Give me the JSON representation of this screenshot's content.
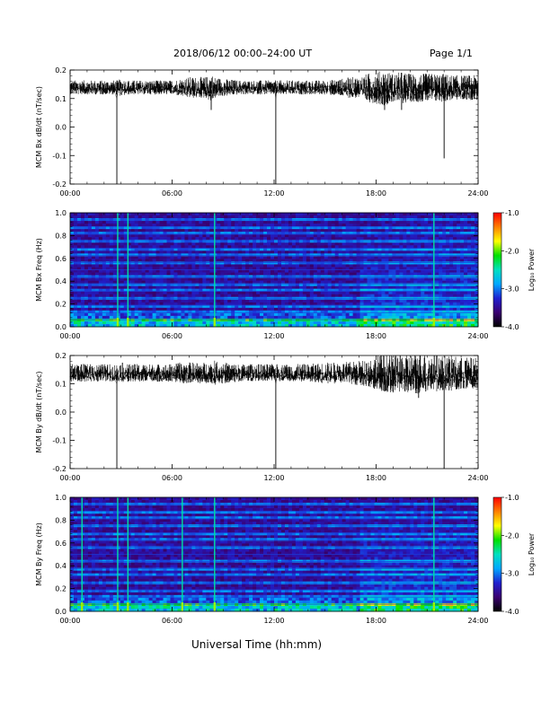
{
  "header": {
    "title": "2018/06/12  00:00–24:00 UT",
    "page": "Page 1/1"
  },
  "footer": {
    "xlabel": "Universal Time (hh:mm)"
  },
  "colors": {
    "trace": "#000000",
    "colormap": [
      "#000000",
      "#3a0070",
      "#2020d0",
      "#00a8ff",
      "#00e0c0",
      "#00e000",
      "#ffff00",
      "#ff8000",
      "#ff0000"
    ]
  },
  "chart_data": [
    {
      "type": "line",
      "title": "",
      "xlabel": "",
      "ylabel": "MCM Bx dB/dt (nT/sec)",
      "x_ticks": [
        "00:00",
        "06:00",
        "12:00",
        "18:00",
        "24:00"
      ],
      "xlim": [
        0,
        24
      ],
      "ylim": [
        -0.2,
        0.2
      ],
      "y_ticks": [
        "0.2",
        "0.1",
        "0.0",
        "-0.1",
        "-0.2"
      ],
      "series": [
        {
          "x": [
            0,
            0.5,
            1,
            1.5,
            2,
            2.5,
            2.75,
            2.8,
            3,
            3.5,
            4,
            4.5,
            5,
            5.5,
            6,
            6.5,
            7,
            7.5,
            8,
            8.3,
            8.5,
            9,
            10,
            11,
            12,
            12.1,
            12.2,
            13,
            14,
            15,
            16,
            16.5,
            17,
            17.5,
            18,
            18.5,
            19,
            19.5,
            20,
            20.5,
            21,
            21.5,
            22,
            22.5,
            23,
            23.5,
            24
          ],
          "y": [
            0.15,
            0.15,
            0.15,
            0.15,
            0.15,
            0.14,
            -0.2,
            0.12,
            0.15,
            0.14,
            0.15,
            0.15,
            0.15,
            0.15,
            0.12,
            0.14,
            0.14,
            0.12,
            0.12,
            0.06,
            0.13,
            0.14,
            0.14,
            0.14,
            0.14,
            -0.2,
            0.14,
            0.14,
            0.14,
            0.14,
            0.15,
            0.15,
            0.15,
            0.15,
            0.16,
            0.06,
            0.15,
            0.06,
            0.14,
            0.1,
            0.14,
            0.14,
            -0.11,
            0.15,
            0.15,
            0.16,
            0.16
          ],
          "envelope": [
            0.02,
            0.02,
            0.02,
            0.02,
            0.02,
            0.02,
            0.02,
            0.02,
            0.025,
            0.02,
            0.02,
            0.02,
            0.02,
            0.02,
            0.02,
            0.025,
            0.03,
            0.03,
            0.03,
            0.04,
            0.03,
            0.025,
            0.02,
            0.02,
            0.02,
            0.02,
            0.02,
            0.02,
            0.02,
            0.02,
            0.025,
            0.03,
            0.03,
            0.04,
            0.045,
            0.05,
            0.04,
            0.045,
            0.04,
            0.04,
            0.04,
            0.04,
            0.04,
            0.035,
            0.035,
            0.035,
            0.035
          ]
        }
      ]
    },
    {
      "type": "heatmap",
      "title": "",
      "xlabel": "",
      "ylabel": "MCM Bx Freq (Hz)",
      "x_ticks": [
        "00:00",
        "06:00",
        "12:00",
        "18:00",
        "24:00"
      ],
      "xlim": [
        0,
        24
      ],
      "ylim": [
        0,
        1.0
      ],
      "y_ticks": [
        "1.0",
        "0.8",
        "0.6",
        "0.4",
        "0.2",
        "0.0"
      ],
      "colorbar": {
        "label": "Log₁₀ Power",
        "range": [
          -4.0,
          -1.0
        ],
        "ticks": [
          "-1.0",
          "-2.0",
          "-3.0",
          "-4.0"
        ]
      },
      "harmonic_hz": 0.0625,
      "bright_times": [
        2.8,
        3.4,
        8.5,
        21.4
      ],
      "active_periods": [
        [
          17,
          24
        ]
      ]
    },
    {
      "type": "line",
      "title": "",
      "xlabel": "",
      "ylabel": "MCM By dB/dt (nT/sec)",
      "x_ticks": [
        "00:00",
        "06:00",
        "12:00",
        "18:00",
        "24:00"
      ],
      "xlim": [
        0,
        24
      ],
      "ylim": [
        -0.2,
        0.2
      ],
      "y_ticks": [
        "0.2",
        "0.1",
        "0.0",
        "-0.1",
        "-0.2"
      ],
      "series": [
        {
          "x": [
            0,
            0.5,
            1,
            1.5,
            2,
            2.5,
            2.75,
            2.8,
            3,
            3.5,
            4,
            4.5,
            5,
            5.5,
            6,
            6.5,
            7,
            7.5,
            8,
            8.5,
            9,
            10,
            11,
            12,
            12.1,
            12.2,
            13,
            14,
            15,
            16,
            17,
            17.5,
            18,
            18.5,
            19,
            19.5,
            20,
            20.5,
            21,
            21.5,
            22,
            22.5,
            23,
            23.5,
            24
          ],
          "y": [
            0.14,
            0.14,
            0.14,
            0.14,
            0.14,
            0.13,
            -0.2,
            0.12,
            0.14,
            0.14,
            0.14,
            0.14,
            0.14,
            0.14,
            0.13,
            0.13,
            0.13,
            0.13,
            0.13,
            0.13,
            0.13,
            0.13,
            0.13,
            0.13,
            -0.2,
            0.13,
            0.13,
            0.13,
            0.14,
            0.14,
            0.14,
            0.15,
            0.14,
            0.1,
            0.13,
            0.1,
            0.12,
            0.05,
            0.12,
            0.13,
            -0.2,
            0.13,
            0.14,
            0.14,
            0.14
          ],
          "envelope": [
            0.025,
            0.025,
            0.025,
            0.025,
            0.025,
            0.025,
            0.025,
            0.025,
            0.03,
            0.025,
            0.025,
            0.025,
            0.025,
            0.025,
            0.025,
            0.03,
            0.03,
            0.03,
            0.03,
            0.035,
            0.03,
            0.025,
            0.025,
            0.025,
            0.025,
            0.025,
            0.025,
            0.025,
            0.03,
            0.03,
            0.035,
            0.04,
            0.05,
            0.055,
            0.055,
            0.055,
            0.055,
            0.06,
            0.055,
            0.055,
            0.05,
            0.05,
            0.045,
            0.045,
            0.045
          ]
        }
      ]
    },
    {
      "type": "heatmap",
      "title": "",
      "xlabel": "",
      "ylabel": "MCM By Freq (Hz)",
      "x_ticks": [
        "00:00",
        "06:00",
        "12:00",
        "18:00",
        "24:00"
      ],
      "xlim": [
        0,
        24
      ],
      "ylim": [
        0,
        1.0
      ],
      "y_ticks": [
        "1.0",
        "0.8",
        "0.6",
        "0.4",
        "0.2",
        "0.0"
      ],
      "colorbar": {
        "label": "Log₁₀ Power",
        "range": [
          -4.0,
          -1.0
        ],
        "ticks": [
          "-1.0",
          "-2.0",
          "-3.0",
          "-4.0"
        ]
      },
      "harmonic_hz": 0.0625,
      "bright_times": [
        0.7,
        2.8,
        3.4,
        6.6,
        8.5,
        21.4
      ],
      "active_periods": [
        [
          17,
          24
        ]
      ]
    }
  ]
}
